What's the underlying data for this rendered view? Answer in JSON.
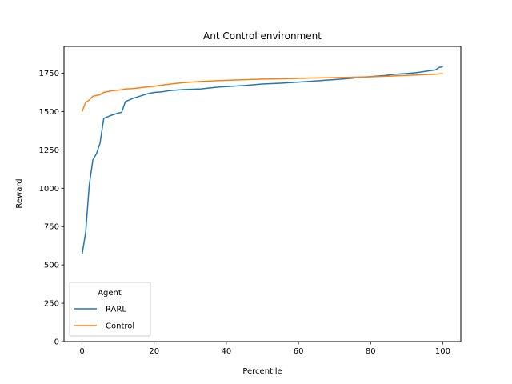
{
  "chart_data": {
    "type": "line",
    "title": "Ant Control environment",
    "xlabel": "Percentile",
    "ylabel": "Reward",
    "xlim": [
      -5,
      105
    ],
    "ylim": [
      0,
      1925
    ],
    "xticks": [
      0,
      20,
      40,
      60,
      80,
      100
    ],
    "yticks": [
      0,
      250,
      500,
      750,
      1000,
      1250,
      1500,
      1750
    ],
    "grid": false,
    "legend": {
      "title": "Agent",
      "placement": "lower-left"
    },
    "x": [
      0,
      1,
      2,
      3,
      4,
      5,
      6,
      8,
      10,
      11,
      12,
      14,
      16,
      18,
      20,
      22,
      24,
      26,
      28,
      30,
      33,
      35,
      38,
      40,
      45,
      50,
      55,
      60,
      63,
      68,
      72,
      76,
      80,
      84,
      86,
      88,
      90,
      92,
      94,
      96,
      98,
      99,
      100
    ],
    "series": [
      {
        "name": "RARL",
        "color": "#1f77b4",
        "values": [
          568,
          710,
          1020,
          1185,
          1225,
          1295,
          1455,
          1475,
          1490,
          1495,
          1565,
          1585,
          1600,
          1615,
          1625,
          1628,
          1636,
          1640,
          1643,
          1645,
          1648,
          1653,
          1660,
          1663,
          1670,
          1680,
          1685,
          1692,
          1697,
          1705,
          1712,
          1720,
          1728,
          1735,
          1742,
          1745,
          1748,
          1752,
          1758,
          1765,
          1772,
          1788,
          1792
        ]
      },
      {
        "name": "Control",
        "color": "#ff7f0e",
        "values": [
          1500,
          1560,
          1575,
          1600,
          1605,
          1610,
          1625,
          1635,
          1640,
          1643,
          1647,
          1650,
          1655,
          1660,
          1665,
          1672,
          1678,
          1684,
          1688,
          1692,
          1696,
          1699,
          1702,
          1704,
          1708,
          1712,
          1714,
          1716,
          1718,
          1720,
          1722,
          1725,
          1727,
          1730,
          1732,
          1734,
          1736,
          1738,
          1740,
          1742,
          1744,
          1746,
          1748
        ]
      }
    ]
  }
}
